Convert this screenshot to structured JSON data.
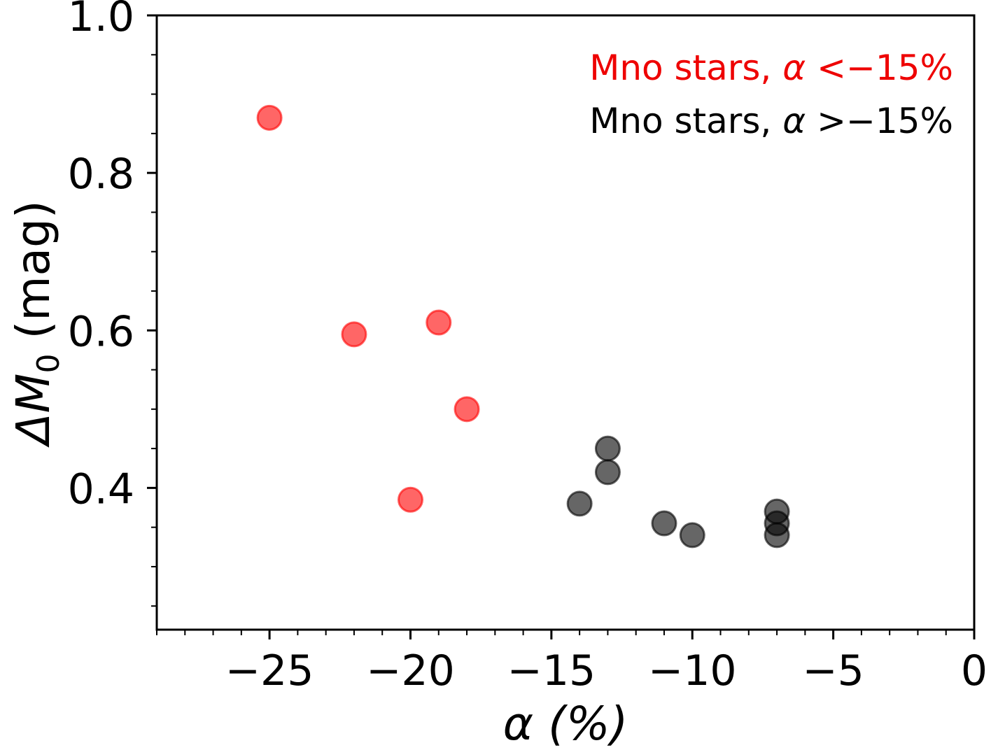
{
  "chart_data": {
    "type": "scatter",
    "title": "",
    "xlabel": "α (%)",
    "ylabel_prefix": "ΔM",
    "ylabel_subscript": "0",
    "ylabel_suffix": " (mag)",
    "xlim": [
      -29,
      0
    ],
    "ylim": [
      0.22,
      1.0
    ],
    "x_ticks": [
      -25,
      -20,
      -15,
      -10,
      -5,
      0
    ],
    "x_tick_labels": [
      "−25",
      "−20",
      "−15",
      "−10",
      "−5",
      "0"
    ],
    "x_minor_step": 1,
    "y_ticks": [
      0.4,
      0.6,
      0.8,
      1.0
    ],
    "y_tick_labels": [
      "0.4",
      "0.6",
      "0.8",
      "1.0"
    ],
    "y_minor_step": 0.05,
    "grid": false,
    "legend_position": "top-right",
    "series": [
      {
        "name": "Mno stars, α <−15%",
        "legend_prefix": "Mno stars, ",
        "legend_symbol": "α",
        "legend_suffix": " <−15%",
        "color": "#ff0000",
        "text_color": "#ee0000",
        "x": [
          -25,
          -22,
          -19,
          -18,
          -20
        ],
        "y": [
          0.87,
          0.595,
          0.61,
          0.5,
          0.385
        ]
      },
      {
        "name": "Mno stars, α >−15%",
        "legend_prefix": "Mno stars, ",
        "legend_symbol": "α",
        "legend_suffix": " >−15%",
        "color": "#000000",
        "text_color": "#000000",
        "x": [
          -13,
          -13,
          -14,
          -11,
          -10,
          -7,
          -7,
          -7
        ],
        "y": [
          0.45,
          0.42,
          0.38,
          0.355,
          0.34,
          0.37,
          0.355,
          0.34
        ]
      }
    ]
  }
}
